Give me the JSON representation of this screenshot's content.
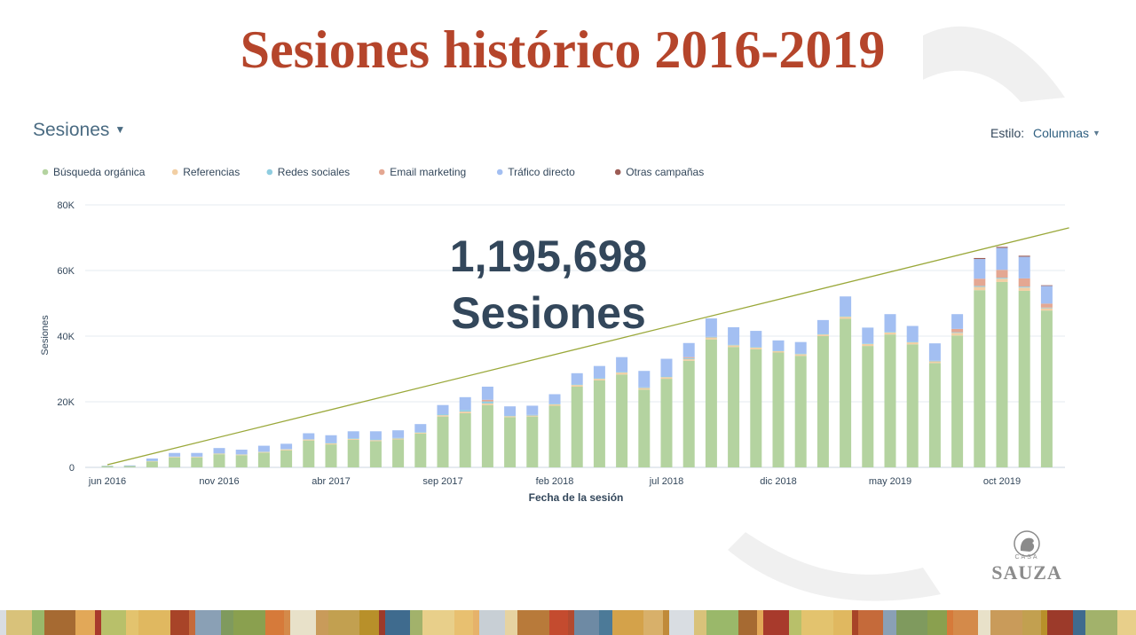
{
  "slide": {
    "title": "Sesiones histórico 2016-2019"
  },
  "metric_selector": {
    "label": "Sesiones",
    "caret": "▼"
  },
  "style_selector": {
    "label": "Estilo:",
    "value": "Columnas",
    "caret": "▼"
  },
  "overlay": {
    "total": "1,195,698",
    "unit": "Sesiones"
  },
  "logo": {
    "brand_small": "CASA",
    "brand": "SAUZA",
    "icon": "rooster-crest-icon"
  },
  "colors": {
    "title": "#b5452b",
    "trendline": "#9aa83a",
    "gridline": "#e2e8ee",
    "axis_text": "#516f90",
    "overlay_text": "#33475b"
  },
  "chart_data": {
    "type": "bar",
    "stacked": true,
    "xlabel": "Fecha de la sesión",
    "ylabel": "Sesiones",
    "ylim": [
      0,
      80000
    ],
    "yticks": [
      "0",
      "20K",
      "40K",
      "60K",
      "80K"
    ],
    "grid": true,
    "legend_position": "top-left",
    "x_tick_labels": [
      {
        "label": "jun 2016",
        "index": 0
      },
      {
        "label": "nov 2016",
        "index": 5
      },
      {
        "label": "abr 2017",
        "index": 10
      },
      {
        "label": "sep 2017",
        "index": 15
      },
      {
        "label": "feb 2018",
        "index": 20
      },
      {
        "label": "jul 2018",
        "index": 25
      },
      {
        "label": "dic 2018",
        "index": 30
      },
      {
        "label": "may 2019",
        "index": 35
      },
      {
        "label": "oct 2019",
        "index": 40
      }
    ],
    "categories": [
      "jun 2016",
      "jul 2016",
      "ago 2016",
      "sep 2016",
      "oct 2016",
      "nov 2016",
      "dic 2016",
      "ene 2017",
      "feb 2017",
      "mar 2017",
      "abr 2017",
      "may 2017",
      "jun 2017",
      "jul 2017",
      "ago 2017",
      "sep 2017",
      "oct 2017",
      "nov 2017",
      "dic 2017",
      "ene 2018",
      "feb 2018",
      "mar 2018",
      "abr 2018",
      "may 2018",
      "jun 2018",
      "jul 2018",
      "ago 2018",
      "sep 2018",
      "oct 2018",
      "nov 2018",
      "dic 2018",
      "ene 2019",
      "feb 2019",
      "mar 2019",
      "abr 2019",
      "may 2019",
      "jun 2019",
      "jul 2019",
      "ago 2019",
      "sep 2019",
      "oct 2019",
      "nov 2019",
      "dic 2019"
    ],
    "series": [
      {
        "name": "Búsqueda orgánica",
        "color": "#b4d3a0",
        "values": [
          400,
          400,
          1800,
          3000,
          3000,
          4000,
          3700,
          4500,
          5200,
          8200,
          7000,
          8400,
          8000,
          8500,
          10300,
          15500,
          16500,
          19000,
          15300,
          15500,
          18800,
          24600,
          26500,
          28300,
          23700,
          27000,
          32500,
          39000,
          36700,
          36000,
          35000,
          34000,
          40000,
          45300,
          37000,
          40500,
          37500,
          31800,
          40200,
          54000,
          56500,
          53800,
          47800
        ]
      },
      {
        "name": "Referencias",
        "color": "#f2cfa4",
        "values": [
          0,
          0,
          100,
          200,
          200,
          200,
          200,
          200,
          300,
          300,
          300,
          300,
          300,
          300,
          300,
          400,
          500,
          500,
          300,
          300,
          400,
          500,
          500,
          600,
          500,
          500,
          500,
          600,
          500,
          500,
          400,
          500,
          500,
          600,
          600,
          600,
          600,
          500,
          800,
          1000,
          1000,
          1000,
          700
        ]
      },
      {
        "name": "Redes sociales",
        "color": "#8fcde0",
        "values": [
          0,
          0,
          100,
          100,
          100,
          100,
          100,
          100,
          100,
          100,
          200,
          200,
          200,
          200,
          200,
          300,
          500,
          600,
          200,
          200,
          200,
          200,
          200,
          200,
          200,
          200,
          300,
          200,
          200,
          200,
          200,
          200,
          200,
          200,
          200,
          200,
          200,
          200,
          200,
          300,
          300,
          300,
          200
        ]
      },
      {
        "name": "Email marketing",
        "color": "#e4a792",
        "values": [
          0,
          0,
          0,
          0,
          0,
          0,
          0,
          0,
          0,
          0,
          0,
          0,
          0,
          0,
          0,
          0,
          0,
          500,
          0,
          0,
          0,
          0,
          0,
          0,
          0,
          0,
          300,
          0,
          0,
          0,
          0,
          0,
          0,
          0,
          0,
          0,
          0,
          0,
          1000,
          2200,
          2400,
          2500,
          1200
        ]
      },
      {
        "name": "Tráfico directo",
        "color": "#a3bff2",
        "values": [
          100,
          200,
          700,
          1100,
          1100,
          1600,
          1400,
          1800,
          1600,
          1800,
          2300,
          2100,
          2500,
          2300,
          2400,
          2800,
          3900,
          4000,
          2800,
          2800,
          2900,
          3400,
          3700,
          4500,
          5000,
          5400,
          4300,
          5600,
          5300,
          4900,
          3100,
          3500,
          4200,
          6000,
          4800,
          5400,
          4800,
          5300,
          4500,
          6000,
          6700,
          6600,
          5400
        ]
      },
      {
        "name": "Otras campañas",
        "color": "#9c5c55",
        "values": [
          0,
          0,
          0,
          0,
          0,
          0,
          0,
          0,
          0,
          0,
          0,
          0,
          0,
          0,
          0,
          0,
          0,
          0,
          0,
          0,
          0,
          0,
          0,
          0,
          0,
          0,
          0,
          0,
          0,
          0,
          0,
          0,
          0,
          0,
          0,
          0,
          0,
          0,
          0,
          300,
          300,
          300,
          200
        ]
      }
    ],
    "trendline": {
      "from": [
        0,
        800
      ],
      "to": [
        43,
        73000
      ]
    }
  }
}
